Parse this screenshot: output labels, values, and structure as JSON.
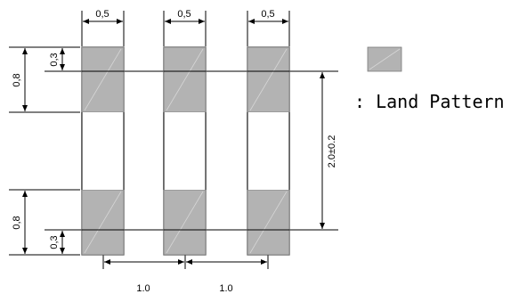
{
  "dimensions": {
    "pad_width": "0,5",
    "pad_height": "0,8",
    "overlap": "0,3",
    "span": "2.0±0.2",
    "pitch": "1.0"
  },
  "legend": {
    "label": ": Land Pattern",
    "swatch_color": "#b3b3b3"
  },
  "colors": {
    "pad_fill": "#b3b3b3",
    "line": "#000000"
  }
}
